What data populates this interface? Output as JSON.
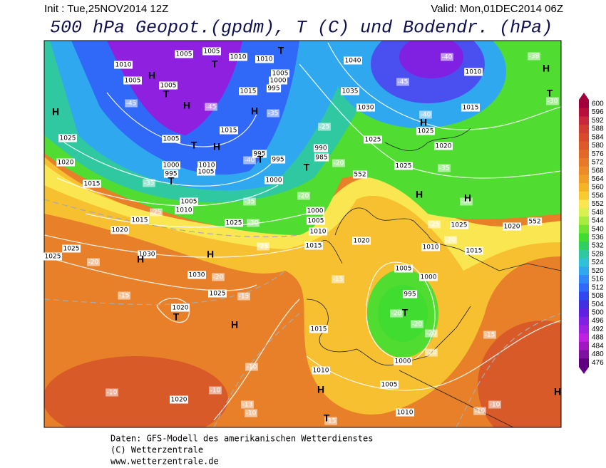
{
  "header": {
    "init": "Init : Tue,25NOV2014 12Z",
    "valid": "Valid: Mon,01DEC2014 06Z",
    "title": "500 hPa Geopot.(gpdm), T (C) und Bodendr. (hPa)"
  },
  "colorbar": {
    "ticks": [
      600,
      596,
      592,
      588,
      584,
      580,
      576,
      572,
      568,
      564,
      560,
      556,
      552,
      548,
      544,
      540,
      536,
      532,
      528,
      524,
      520,
      516,
      512,
      508,
      504,
      500,
      496,
      492,
      488,
      484,
      480,
      476
    ],
    "colors": [
      "#a0003c",
      "#b80f3a",
      "#c8283c",
      "#d23c32",
      "#d84a2a",
      "#dd5a28",
      "#e26a28",
      "#e77a28",
      "#ec8c28",
      "#f09e28",
      "#f5b428",
      "#f8cc30",
      "#fae650",
      "#d8f050",
      "#a8ec40",
      "#70e430",
      "#40dc30",
      "#30d060",
      "#30c8a0",
      "#30c0d8",
      "#30a8f0",
      "#3088f8",
      "#3068f8",
      "#3048f0",
      "#4030e0",
      "#6020e0",
      "#8020e0",
      "#a020e0",
      "#c020e0",
      "#a018c0",
      "#8010a0",
      "#600080"
    ]
  },
  "map": {
    "isobar_labels": [
      1005,
      1005,
      1010,
      1010,
      1040,
      1010,
      1010,
      1005,
      1005,
      1005,
      1000,
      995,
      1015,
      1035,
      1030,
      1015,
      1025,
      1015,
      1025,
      1005,
      1020,
      990,
      985,
      995,
      995,
      1010,
      1005,
      1000,
      995,
      1020,
      1025,
      1015,
      1000,
      1025,
      1005,
      1010,
      1000,
      1015,
      1025,
      1005,
      1025,
      1020,
      1010,
      1020,
      1015,
      1020,
      1010,
      1015,
      1025,
      1025,
      1030,
      1005,
      1000,
      1030,
      1025,
      995,
      1020,
      1015,
      1000,
      1010,
      1005,
      1020,
      1010,
      552,
      552
    ],
    "temp_labels": [
      -40,
      -38,
      -45,
      -45,
      -35,
      -45,
      -30,
      -40,
      -25,
      -20,
      -40,
      -35,
      -25,
      -20,
      -35,
      -30,
      -35,
      -30,
      -25,
      -20,
      -25,
      -20,
      -20,
      -15,
      -15,
      -15,
      -20,
      -20,
      -20,
      -20,
      -15,
      -10,
      -10,
      -10,
      -13,
      -10,
      -10,
      -10,
      -15
    ],
    "centers": [
      "H",
      "T",
      "H",
      "T",
      "T",
      "H",
      "H",
      "T",
      "H",
      "T",
      "T",
      "T",
      "H",
      "T",
      "H",
      "H",
      "H",
      "H",
      "H",
      "T",
      "H",
      "T",
      "H",
      "T",
      "H"
    ]
  },
  "footer": [
    "Daten: GFS-Modell des amerikanischen Wetterdienstes",
    "(C) Wetterzentrale",
    "www.wetterzentrale.de"
  ]
}
